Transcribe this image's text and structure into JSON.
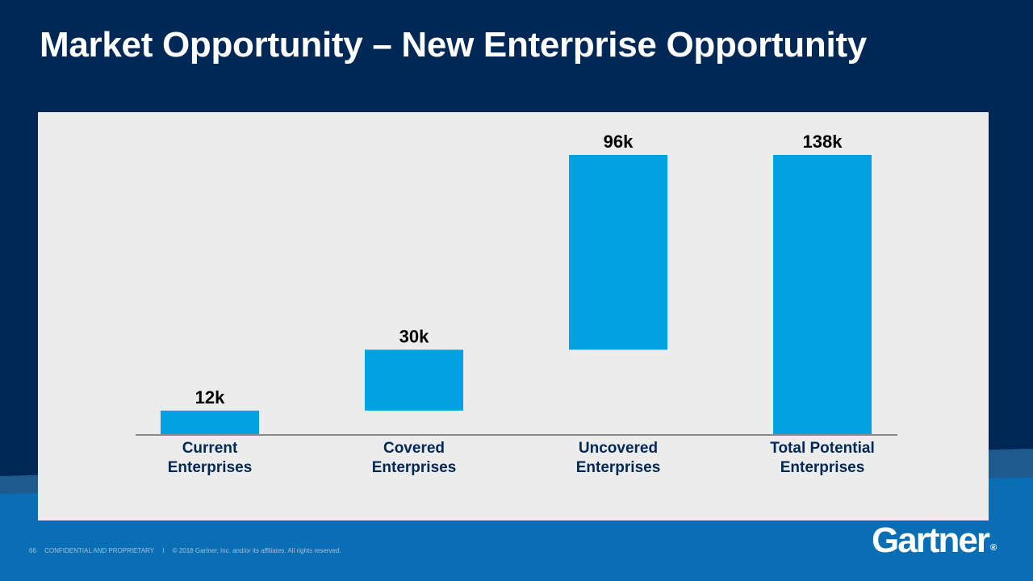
{
  "slide": {
    "title": "Market Opportunity – New Enterprise Opportunity",
    "page_number": "66",
    "confidential": "CONFIDENTIAL AND PROPRIETARY",
    "separator": "I",
    "copyright": "© 2018 Gartner, Inc. and/or its affiliates. All rights reserved.",
    "logo_text": "Gartner",
    "logo_mark": "®"
  },
  "colors": {
    "background": "#002856",
    "bottom_band": "#0a6eb4",
    "band_stripe": "#1e5a8e",
    "panel": "#ececec",
    "bar": "#00a3e0",
    "axis": "#888888",
    "category_label": "#002856",
    "value_label": "#000000"
  },
  "chart_data": {
    "type": "bar",
    "subtype": "waterfall",
    "title": "",
    "xlabel": "",
    "ylabel": "",
    "unit": "k",
    "ylim": [
      0,
      138
    ],
    "categories": [
      "Current Enterprises",
      "Covered Enterprises",
      "Uncovered Enterprises",
      "Total Potential Enterprises"
    ],
    "category_lines": [
      [
        "Current",
        "Enterprises"
      ],
      [
        "Covered",
        "Enterprises"
      ],
      [
        "Uncovered",
        "Enterprises"
      ],
      [
        "Total Potential",
        "Enterprises"
      ]
    ],
    "values": [
      12,
      30,
      96,
      138
    ],
    "value_labels": [
      "12k",
      "30k",
      "96k",
      "138k"
    ],
    "bar_ranges": [
      [
        0,
        12
      ],
      [
        12,
        42
      ],
      [
        42,
        138
      ],
      [
        0,
        138
      ]
    ],
    "grid": false,
    "legend": "none"
  }
}
